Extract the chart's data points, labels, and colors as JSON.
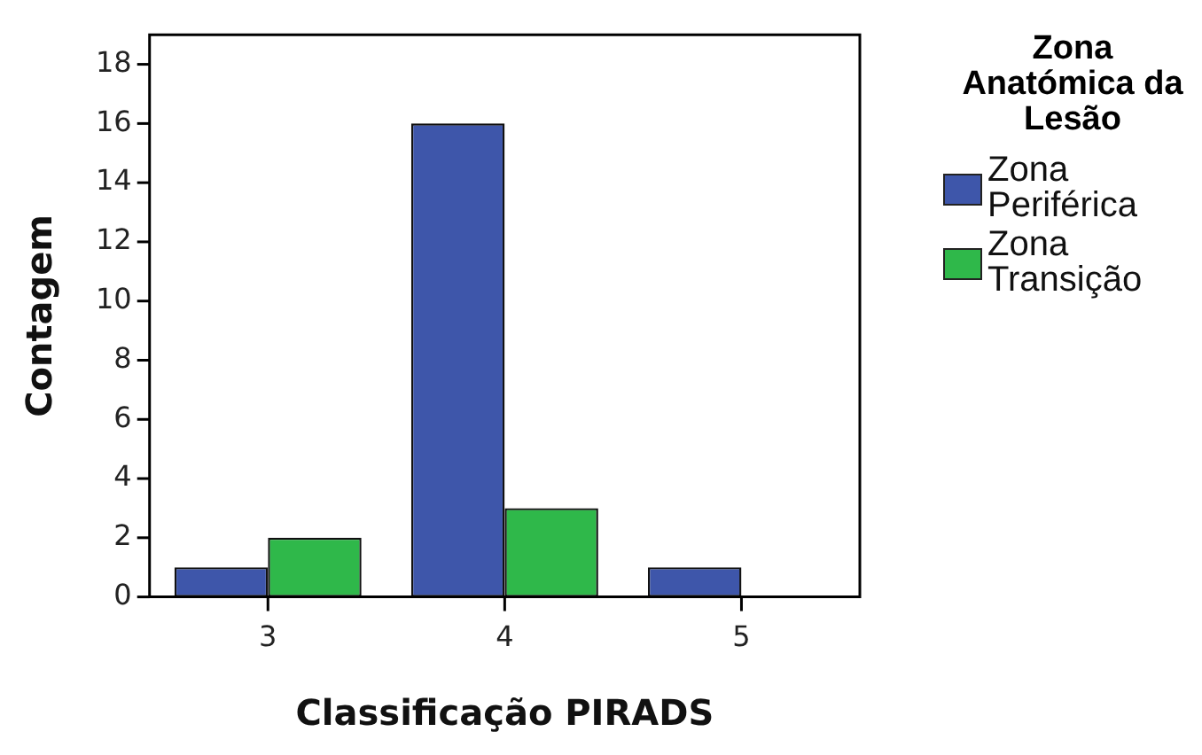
{
  "chart_data": {
    "type": "bar",
    "xlabel": "Classificação PIRADS",
    "ylabel": "Contagem",
    "legend_title": "Zona Anatómica da Lesão",
    "categories": [
      "3",
      "4",
      "5"
    ],
    "series": [
      {
        "name": "Zona Periférica",
        "color": "#3e56aa",
        "values": [
          1,
          16,
          1
        ]
      },
      {
        "name": "Zona Transição",
        "color": "#2fb84a",
        "values": [
          2,
          3,
          0
        ]
      }
    ],
    "ylim": [
      0,
      19
    ],
    "yticks": [
      0,
      2,
      4,
      6,
      8,
      10,
      12,
      14,
      16,
      18
    ],
    "grid": false,
    "legend": "right"
  }
}
